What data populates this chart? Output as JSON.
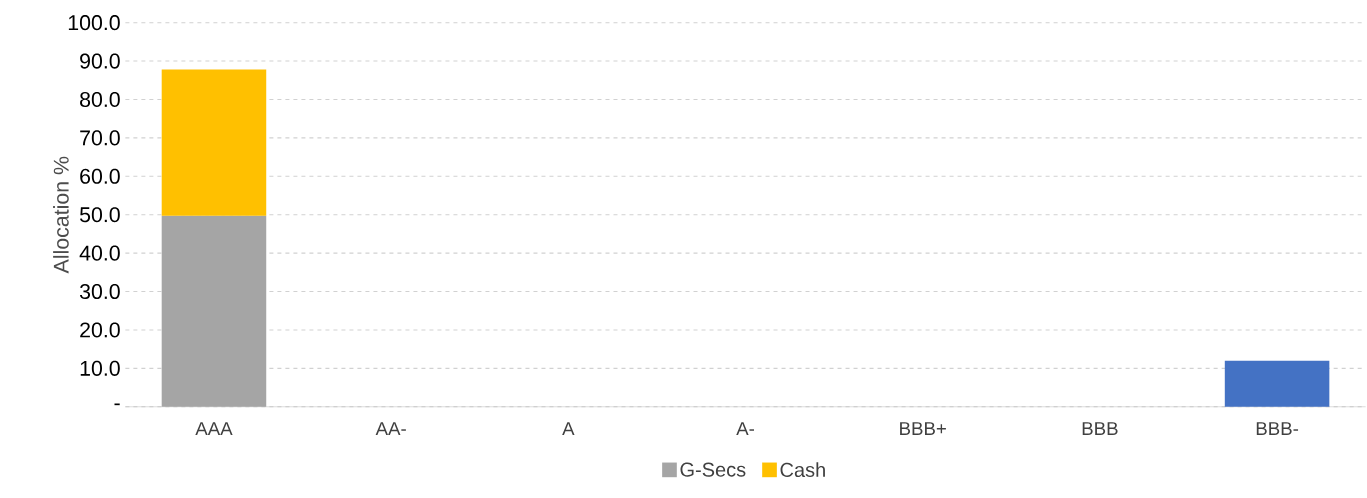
{
  "chart_data": {
    "type": "bar",
    "stacked": true,
    "ylabel": "Allocation %",
    "categories": [
      "AAA",
      "AA-",
      "A",
      "A-",
      "BBB+",
      "BBB",
      "BBB-"
    ],
    "series": [
      {
        "color": "#4472c4",
        "values": [
          null,
          null,
          null,
          null,
          null,
          null,
          12.0
        ]
      },
      {
        "name": "G-Secs",
        "color": "#a5a5a5",
        "values": [
          49.7,
          null,
          null,
          null,
          null,
          null,
          null
        ]
      },
      {
        "name": "Cash",
        "color": "#ffc000",
        "values": [
          38.1,
          null,
          null,
          null,
          null,
          null,
          null
        ]
      }
    ],
    "ylim": [
      0,
      100
    ],
    "yticks": [
      {
        "value": 0,
        "label": "-"
      },
      {
        "value": 10,
        "label": "10.0"
      },
      {
        "value": 20,
        "label": "20.0"
      },
      {
        "value": 30,
        "label": "30.0"
      },
      {
        "value": 40,
        "label": "40.0"
      },
      {
        "value": 50,
        "label": "50.0"
      },
      {
        "value": 60,
        "label": "60.0"
      },
      {
        "value": 70,
        "label": "70.0"
      },
      {
        "value": 80,
        "label": "80.0"
      },
      {
        "value": 90,
        "label": "90.0"
      },
      {
        "value": 100,
        "label": "100.0"
      }
    ],
    "grid": "y",
    "legend": "bottom"
  }
}
